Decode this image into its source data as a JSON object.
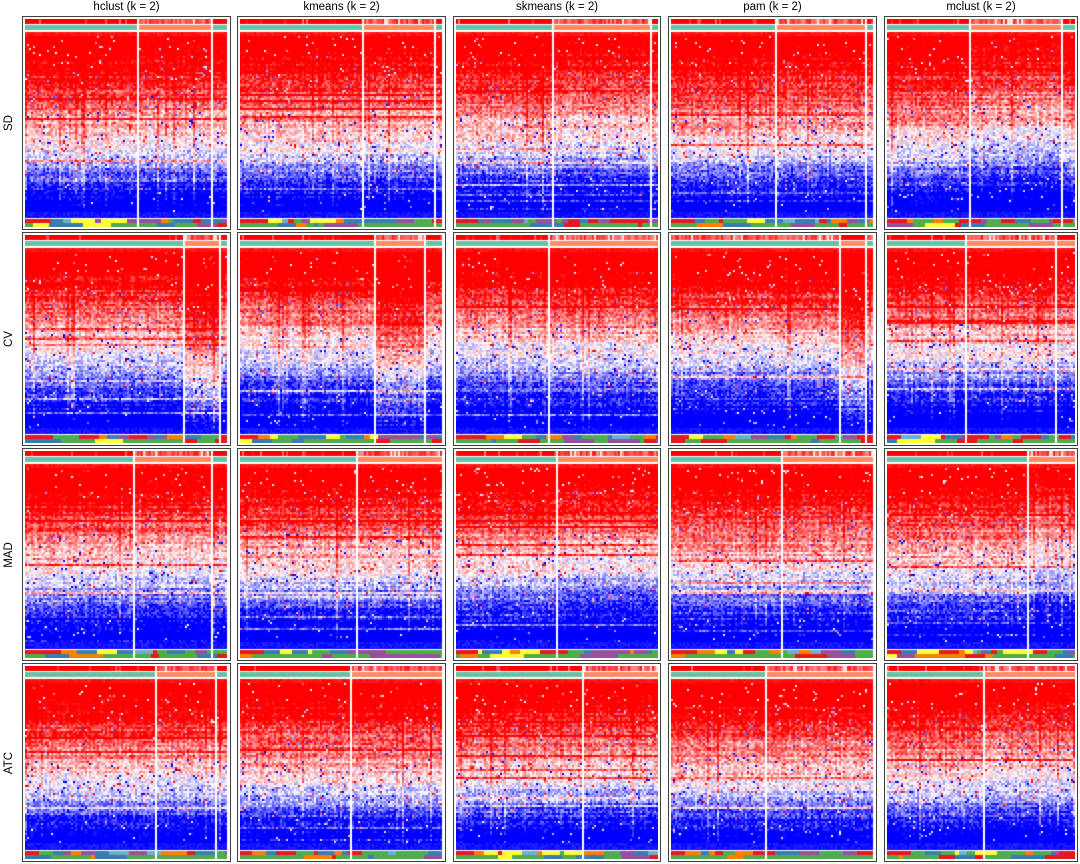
{
  "titles": {
    "cols": [
      "hclust (k = 2)",
      "kmeans (k = 2)",
      "skmeans (k = 2)",
      "pam (k = 2)",
      "mclust (k = 2)"
    ]
  },
  "row_labels": [
    "SD",
    "CV",
    "MAD",
    "ATC"
  ],
  "colors": {
    "background": "#FFFFFF",
    "panel_border": "#3F3F3F",
    "heat_high": "#FF0000",
    "heat_mid": "#FFFFFF",
    "heat_low": "#0000FF",
    "prob_high": "#FF0000",
    "prob_low": "#FFFFFF",
    "class1": "#66C2A5",
    "class2": "#FC8D62",
    "cat_palette": {
      "red": "#E41A1C",
      "orange": "#FF7F00",
      "yellow": "#FFFF33",
      "green": "#4DAF4A",
      "blue": "#377EB8",
      "purple": "#984EA3",
      "lightblue": "#6BAED6"
    }
  },
  "chart_data": {
    "type": "heatmap",
    "title": "",
    "description": "4x5 grid of clustered expression heatmaps. Rows = top-value methods (SD, CV, MAD, ATC); columns = partitioning methods with k = 2. Each panel: top annotation = class membership probability (white-to-red) and 2-class assignment bar (teal = cluster 1, salmon = cluster 2); main matrix = blue-white-red expression heatmap with rows ordered red(top) to blue(bottom); columns split by cluster with white gaps; bottom = two categorical annotation bars.",
    "k": 2,
    "rows": [
      "SD",
      "CV",
      "MAD",
      "ATC"
    ],
    "columns": [
      "hclust (k = 2)",
      "kmeans (k = 2)",
      "skmeans (k = 2)",
      "pam (k = 2)",
      "mclust (k = 2)"
    ],
    "colorscale": {
      "low": "#0000FF",
      "mid": "#FFFFFF",
      "high": "#FF0000"
    },
    "class_colors": {
      "cluster1": "#66C2A5",
      "cluster2": "#FC8D62"
    },
    "legend": "none shown",
    "panel_cluster1_fraction": [
      [
        0.57,
        0.62,
        0.48,
        0.53,
        0.45
      ],
      [
        0.8,
        0.68,
        0.46,
        0.85,
        0.42
      ],
      [
        0.55,
        0.58,
        0.5,
        0.55,
        0.75
      ],
      [
        0.66,
        0.55,
        0.63,
        0.47,
        0.52
      ]
    ]
  },
  "panels": [
    {
      "row": 0,
      "col": 0,
      "name": "sd-hclust",
      "seed": 101,
      "split": 0.57,
      "strip": 0.93,
      "g2": -0.06,
      "invert_prob": false,
      "strip_class": 1,
      "end_red": true,
      "mid": 0.64
    },
    {
      "row": 0,
      "col": 1,
      "name": "sd-kmeans",
      "seed": 102,
      "split": 0.62,
      "strip": 0.97,
      "g2": -0.05,
      "invert_prob": false,
      "strip_class": 1,
      "end_red": false,
      "mid": 0.64
    },
    {
      "row": 0,
      "col": 2,
      "name": "sd-skmeans",
      "seed": 103,
      "split": 0.48,
      "strip": 0.97,
      "g2": -0.1,
      "invert_prob": false,
      "strip_class": 1,
      "end_red": false,
      "mid": 0.62
    },
    {
      "row": 0,
      "col": 3,
      "name": "sd-pam",
      "seed": 104,
      "split": 0.53,
      "strip": 0.97,
      "g2": -0.05,
      "invert_prob": false,
      "strip_class": 1,
      "end_red": false,
      "mid": 0.64
    },
    {
      "row": 0,
      "col": 4,
      "name": "sd-mclust",
      "seed": 105,
      "split": 0.45,
      "strip": 0.93,
      "g2": -0.18,
      "invert_prob": false,
      "strip_class": 1,
      "end_red": false,
      "mid": 0.63
    },
    {
      "row": 1,
      "col": 0,
      "name": "cv-hclust",
      "seed": 201,
      "split": 0.8,
      "strip": 0.97,
      "g2": 0.45,
      "invert_prob": false,
      "strip_class": 1,
      "end_red": true,
      "mid": 0.55
    },
    {
      "row": 1,
      "col": 1,
      "name": "cv-kmeans",
      "seed": 202,
      "split": 0.68,
      "strip": 0.92,
      "g2": 0.4,
      "invert_prob": false,
      "strip_class": 1,
      "end_red": true,
      "mid": 0.55
    },
    {
      "row": 1,
      "col": 2,
      "name": "cv-skmeans",
      "seed": 203,
      "split": 0.46,
      "strip": null,
      "g2": 0.05,
      "invert_prob": false,
      "strip_class": 2,
      "end_red": false,
      "mid": 0.55
    },
    {
      "row": 1,
      "col": 3,
      "name": "cv-pam",
      "seed": 204,
      "split": 0.85,
      "strip": 0.97,
      "g2": 0.45,
      "invert_prob": true,
      "strip_class": 1,
      "end_red": true,
      "mid": 0.56
    },
    {
      "row": 1,
      "col": 4,
      "name": "cv-mclust",
      "seed": 205,
      "split": 0.42,
      "strip": 0.9,
      "g2": 0.02,
      "invert_prob": false,
      "strip_class": 2,
      "end_red": false,
      "mid": 0.55
    },
    {
      "row": 2,
      "col": 0,
      "name": "mad-hclust",
      "seed": 301,
      "split": 0.55,
      "strip": 0.93,
      "g2": -0.05,
      "invert_prob": false,
      "strip_class": 1,
      "end_red": true,
      "mid": 0.6
    },
    {
      "row": 2,
      "col": 1,
      "name": "mad-kmeans",
      "seed": 302,
      "split": 0.58,
      "strip": null,
      "g2": -0.05,
      "invert_prob": false,
      "strip_class": 2,
      "end_red": false,
      "mid": 0.6
    },
    {
      "row": 2,
      "col": 2,
      "name": "mad-skmeans",
      "seed": 303,
      "split": 0.5,
      "strip": null,
      "g2": -0.1,
      "invert_prob": false,
      "strip_class": 2,
      "end_red": false,
      "mid": 0.59
    },
    {
      "row": 2,
      "col": 3,
      "name": "mad-pam",
      "seed": 304,
      "split": 0.55,
      "strip": null,
      "g2": -0.05,
      "invert_prob": false,
      "strip_class": 2,
      "end_red": false,
      "mid": 0.6
    },
    {
      "row": 2,
      "col": 4,
      "name": "mad-mclust",
      "seed": 305,
      "split": 0.75,
      "strip": null,
      "g2": -0.2,
      "invert_prob": false,
      "strip_class": 2,
      "end_red": false,
      "mid": 0.6
    },
    {
      "row": 3,
      "col": 0,
      "name": "atc-hclust",
      "seed": 401,
      "split": 0.66,
      "strip": 0.95,
      "g2": -0.05,
      "invert_prob": false,
      "strip_class": 1,
      "end_red": false,
      "mid": 0.63
    },
    {
      "row": 3,
      "col": 1,
      "name": "atc-kmeans",
      "seed": 402,
      "split": 0.55,
      "strip": null,
      "g2": 0.0,
      "invert_prob": false,
      "strip_class": 2,
      "end_red": false,
      "mid": 0.63
    },
    {
      "row": 3,
      "col": 2,
      "name": "atc-skmeans",
      "seed": 403,
      "split": 0.63,
      "strip": null,
      "g2": -0.05,
      "invert_prob": false,
      "strip_class": 2,
      "end_red": false,
      "mid": 0.62
    },
    {
      "row": 3,
      "col": 3,
      "name": "atc-pam",
      "seed": 404,
      "split": 0.47,
      "strip": null,
      "g2": 0.0,
      "invert_prob": false,
      "strip_class": 2,
      "end_red": false,
      "mid": 0.63
    },
    {
      "row": 3,
      "col": 4,
      "name": "atc-mclust",
      "seed": 405,
      "split": 0.52,
      "strip": null,
      "g2": -0.1,
      "invert_prob": false,
      "strip_class": 2,
      "end_red": true,
      "mid": 0.63
    }
  ]
}
